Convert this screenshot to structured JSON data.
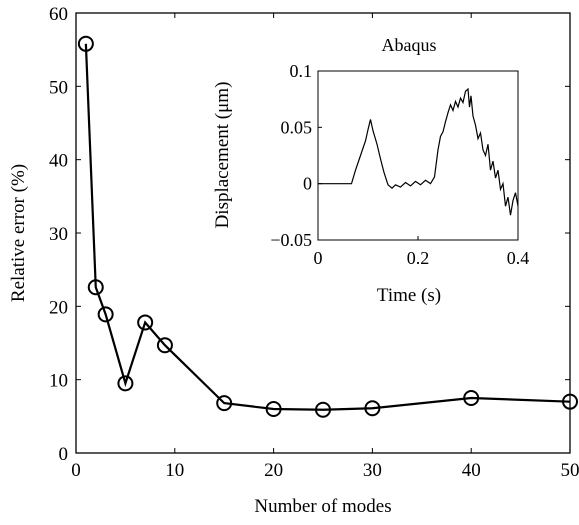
{
  "chart_data": [
    {
      "type": "line",
      "title": "",
      "xlabel": "Number of modes",
      "ylabel": "Relative error  (%)",
      "xlim": [
        0,
        50
      ],
      "ylim": [
        0,
        60
      ],
      "xticks": [
        0,
        10,
        20,
        30,
        40,
        50
      ],
      "yticks": [
        0,
        10,
        20,
        30,
        40,
        50,
        60
      ],
      "grid": false,
      "marker": "open-circle",
      "series": [
        {
          "x": [
            1,
            2,
            3,
            5,
            7,
            9,
            15,
            20,
            25,
            30,
            40,
            50
          ],
          "y": [
            55.8,
            22.6,
            18.9,
            9.5,
            17.8,
            14.7,
            6.8,
            6.0,
            5.9,
            6.1,
            7.5,
            7.0
          ]
        }
      ]
    },
    {
      "type": "line",
      "title": "Abaqus",
      "xlabel": "Time (s)",
      "ylabel": "Displacement (μm)",
      "xlim": [
        0,
        0.4
      ],
      "ylim": [
        -0.05,
        0.1
      ],
      "xticks": [
        "0",
        "0.2",
        "0.4"
      ],
      "yticks": [
        "−0.05",
        "0",
        "0.05",
        "0.1"
      ],
      "grid": false,
      "series": [
        {
          "x": [
            0.0,
            0.067,
            0.075,
            0.085,
            0.095,
            0.1,
            0.105,
            0.11,
            0.118,
            0.125,
            0.132,
            0.14,
            0.148,
            0.155,
            0.165,
            0.175,
            0.185,
            0.195,
            0.205,
            0.215,
            0.225,
            0.233,
            0.24,
            0.245,
            0.25,
            0.255,
            0.26,
            0.265,
            0.27,
            0.275,
            0.28,
            0.285,
            0.29,
            0.295,
            0.3,
            0.303,
            0.306,
            0.31,
            0.315,
            0.32,
            0.325,
            0.33,
            0.335,
            0.34,
            0.345,
            0.35,
            0.355,
            0.36,
            0.365,
            0.37,
            0.375,
            0.38,
            0.385,
            0.39,
            0.395,
            0.4
          ],
          "y": [
            0.0,
            0.0,
            0.012,
            0.025,
            0.038,
            0.048,
            0.057,
            0.047,
            0.035,
            0.022,
            0.01,
            -0.001,
            -0.004,
            -0.001,
            -0.003,
            0.001,
            -0.002,
            0.002,
            -0.001,
            0.003,
            0.0,
            0.006,
            0.03,
            0.042,
            0.046,
            0.055,
            0.063,
            0.07,
            0.065,
            0.073,
            0.068,
            0.076,
            0.072,
            0.082,
            0.084,
            0.068,
            0.078,
            0.06,
            0.052,
            0.04,
            0.045,
            0.03,
            0.025,
            0.035,
            0.012,
            0.02,
            0.005,
            0.012,
            -0.005,
            0.0,
            -0.02,
            -0.012,
            -0.028,
            -0.015,
            -0.008,
            -0.02
          ]
        }
      ]
    }
  ]
}
